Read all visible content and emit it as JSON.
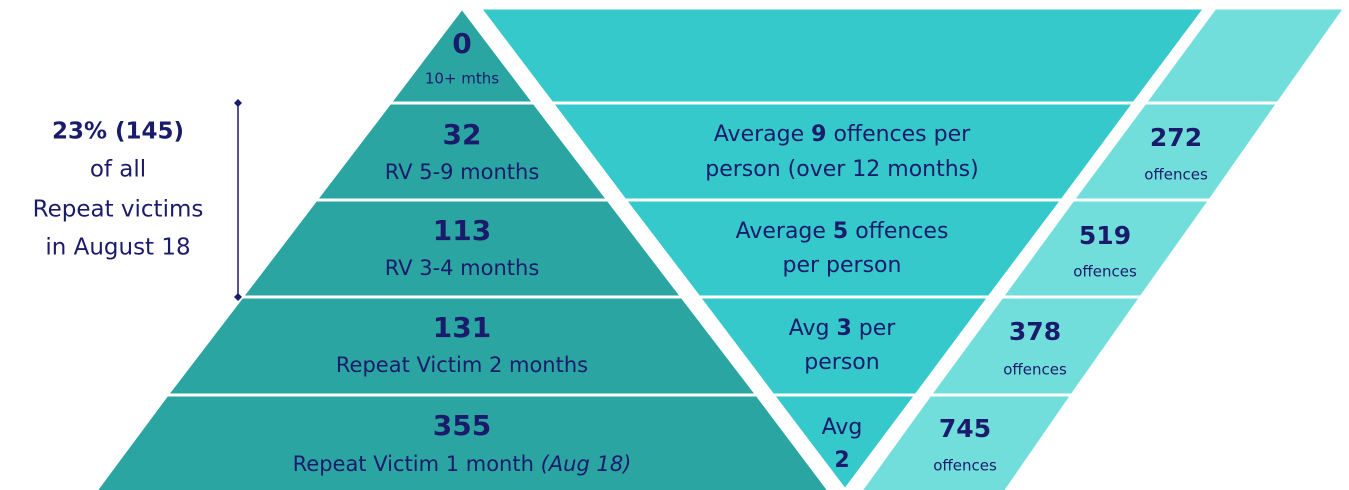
{
  "summary": {
    "headline": "23% (145)",
    "lines": [
      "of all",
      "Repeat victims",
      "in August 18"
    ]
  },
  "tiers": [
    {
      "count": "0",
      "label": "10+ mths"
    },
    {
      "count": "32",
      "label": "RV 5-9 months"
    },
    {
      "count": "113",
      "label": "RV 3-4 months"
    },
    {
      "count": "131",
      "label": "Repeat Victim 2 months"
    },
    {
      "count": "355",
      "label": "Repeat Victim 1 month ",
      "note": "(Aug 18)"
    }
  ],
  "averages": [
    {
      "before": "Average ",
      "number": "9",
      "after": " offences per",
      "line2": "person (over 12 months)"
    },
    {
      "before": "Average ",
      "number": "5",
      "after": " offences",
      "line2": "per person"
    },
    {
      "before": "Avg ",
      "number": "3",
      "after": " per",
      "line2": "person"
    },
    {
      "before": "Avg",
      "number": "2"
    }
  ],
  "offences": [
    {
      "count": "272",
      "unit": "offences"
    },
    {
      "count": "519",
      "unit": "offences"
    },
    {
      "count": "378",
      "unit": "offences"
    },
    {
      "count": "745",
      "unit": "offences"
    }
  ]
}
